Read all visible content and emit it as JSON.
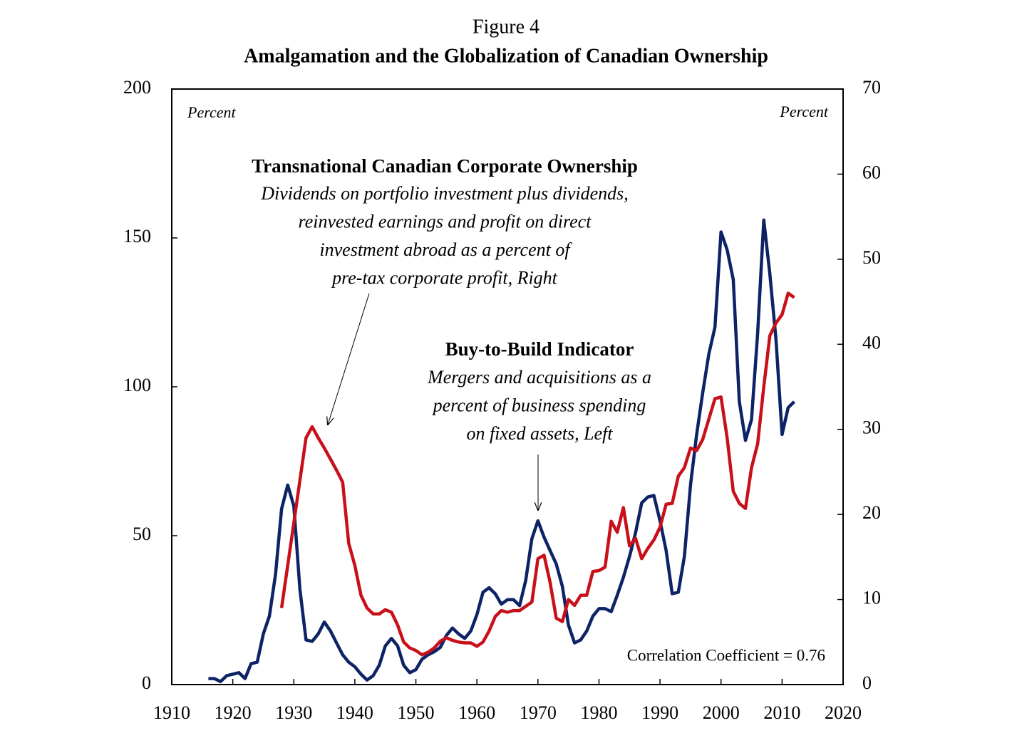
{
  "chart_data": {
    "type": "line",
    "title": "Figure 4",
    "subtitle": "Amalgamation and the Globalization of Canadian Ownership",
    "y_label": "Percent",
    "y2_label": "Percent",
    "annotations": [
      {
        "title": "Transnational Canadian  Corporate Ownership",
        "lines": [
          "Dividends on portfolio investment plus dividends,",
          "reinvested earnings and profit on direct",
          "investment  abroad as a percent of",
          "pre-tax corporate profit, Right"
        ]
      },
      {
        "title": "Buy-to-Build Indicator",
        "lines": [
          "Mergers and acquisitions as a",
          "percent of business spending",
          "on fixed assets, Left"
        ]
      }
    ],
    "note": "Correlation Coefficient = 0.76",
    "x": [
      1916,
      1917,
      1918,
      1919,
      1920,
      1921,
      1922,
      1923,
      1924,
      1925,
      1926,
      1927,
      1928,
      1929,
      1930,
      1931,
      1932,
      1933,
      1934,
      1935,
      1936,
      1937,
      1938,
      1939,
      1940,
      1941,
      1942,
      1943,
      1944,
      1945,
      1946,
      1947,
      1948,
      1949,
      1950,
      1951,
      1952,
      1953,
      1954,
      1955,
      1956,
      1957,
      1958,
      1959,
      1960,
      1961,
      1962,
      1963,
      1964,
      1965,
      1966,
      1967,
      1968,
      1969,
      1970,
      1971,
      1972,
      1973,
      1974,
      1975,
      1976,
      1977,
      1978,
      1979,
      1980,
      1981,
      1982,
      1983,
      1984,
      1985,
      1986,
      1987,
      1988,
      1989,
      1990,
      1991,
      1992,
      1993,
      1994,
      1995,
      1996,
      1997,
      1998,
      1999,
      2000,
      2001,
      2002,
      2003,
      2004,
      2005,
      2006,
      2007,
      2008,
      2009,
      2010,
      2011,
      2012
    ],
    "series": [
      {
        "name": "Buy-to-Build Indicator",
        "color": "#0d2366",
        "axis": "y",
        "values": [
          2,
          2,
          1,
          3,
          3.5,
          4,
          2,
          7,
          7.5,
          17,
          23,
          37,
          59,
          67,
          60,
          32,
          15,
          14.5,
          17,
          21,
          18,
          14,
          10,
          7.5,
          6,
          3.5,
          1.5,
          3,
          6.5,
          13,
          15.5,
          13,
          6.5,
          4,
          5,
          8.5,
          10,
          11,
          12.5,
          16.5,
          19,
          17,
          15.5,
          18,
          23.5,
          31,
          32.5,
          30.5,
          27,
          28.5,
          28.5,
          26.5,
          35,
          49,
          55,
          49.5,
          45,
          40.5,
          33,
          20,
          14,
          15,
          18,
          23,
          25.5,
          25.5,
          24.5,
          30,
          36,
          43,
          51,
          61,
          63,
          63.5,
          55,
          45,
          30.5,
          31,
          43,
          67,
          84,
          98,
          111,
          120,
          152,
          146,
          136,
          95,
          82,
          89,
          118,
          156,
          138,
          116,
          84,
          93,
          95
        ]
      },
      {
        "name": "Transnational Canadian  Corporate Ownership",
        "color": "#c8101a",
        "axis": "y2",
        "values": [
          null,
          null,
          null,
          null,
          null,
          null,
          null,
          null,
          null,
          null,
          null,
          null,
          9,
          14,
          19,
          24,
          29,
          30.3,
          29,
          27.8,
          26.5,
          25.2,
          23.8,
          16.6,
          14,
          10.5,
          9,
          8.3,
          8.3,
          8.8,
          8.5,
          7,
          5,
          4.3,
          4,
          3.5,
          3.8,
          4.3,
          5.1,
          5.5,
          5.2,
          5,
          4.9,
          4.9,
          4.5,
          5,
          6.3,
          8,
          8.7,
          8.5,
          8.7,
          8.7,
          9.2,
          9.7,
          14.8,
          15.2,
          12,
          7.8,
          7.4,
          10,
          9.3,
          10.5,
          10.5,
          13.3,
          13.4,
          13.8,
          19.2,
          17.9,
          20.8,
          16.3,
          17.2,
          14.8,
          16,
          17,
          18.5,
          21.2,
          21.3,
          24.5,
          25.5,
          27.8,
          27.5,
          28.8,
          31.2,
          33.6,
          33.8,
          29,
          22.7,
          21.3,
          20.7,
          25.5,
          28.3,
          35,
          41,
          42.5,
          43.5,
          46,
          45.5
        ]
      }
    ],
    "xlim": [
      1910,
      2020
    ],
    "xticks": [
      1910,
      1920,
      1930,
      1940,
      1950,
      1960,
      1970,
      1980,
      1990,
      2000,
      2010,
      2020
    ],
    "ylim": [
      0,
      200
    ],
    "yticks": [
      0,
      50,
      100,
      150,
      200
    ],
    "y2lim": [
      0,
      70
    ],
    "y2ticks": [
      0,
      10,
      20,
      30,
      40,
      50,
      60,
      70
    ],
    "grid": false
  }
}
